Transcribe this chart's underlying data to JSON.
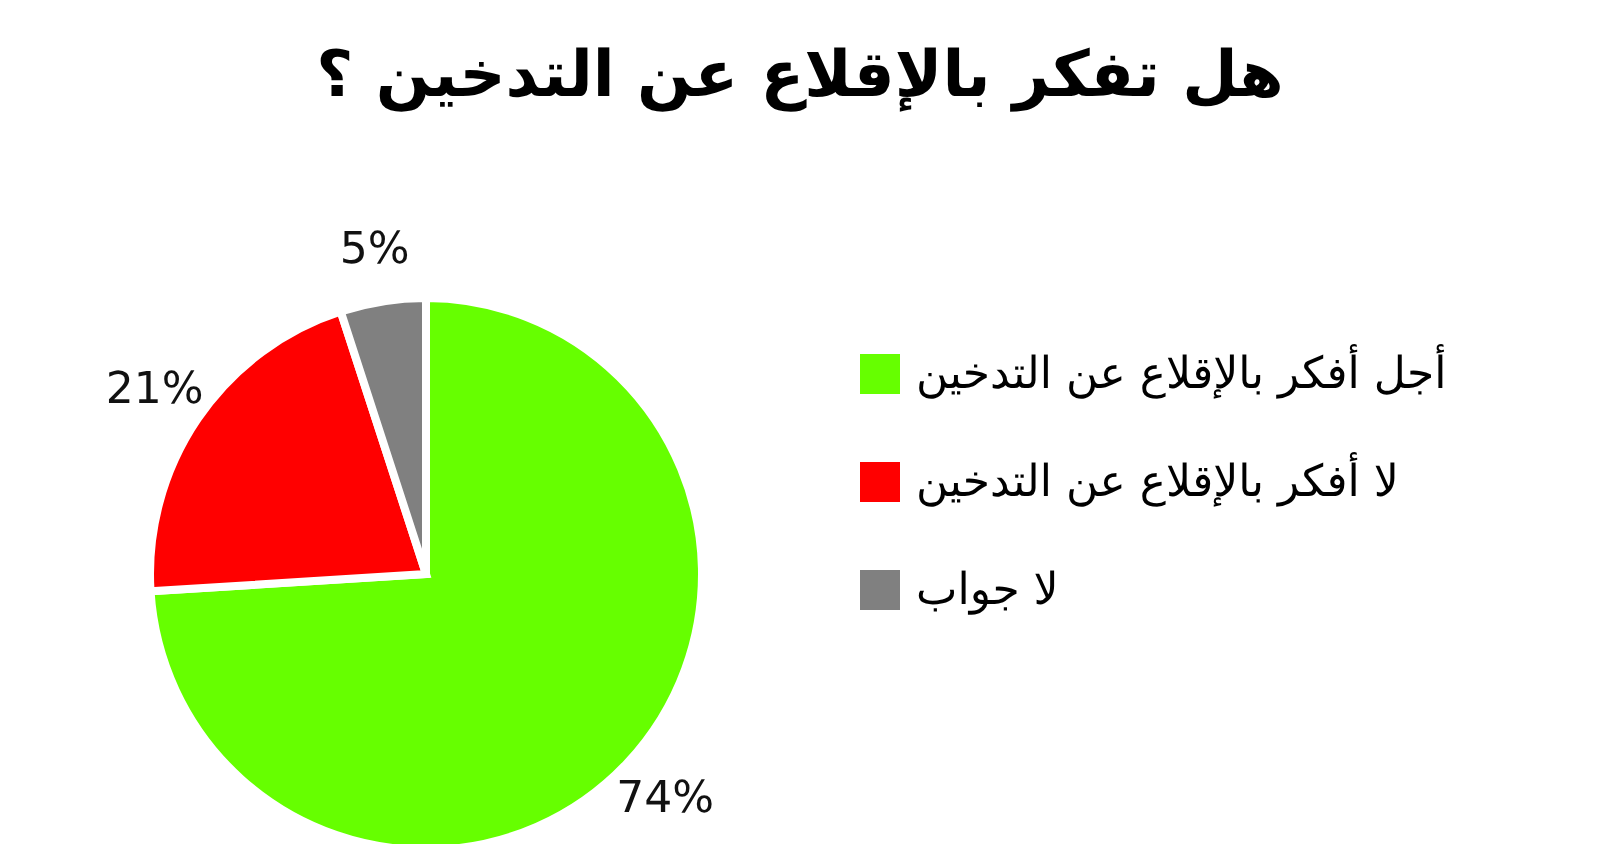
{
  "chart_data": {
    "type": "pie",
    "title": "هل تفكر بالإقلاع عن التدخين ؟",
    "categories": [
      "أجل أفكر بالإقلاع عن التدخين",
      "لا أفكر بالإقلاع عن التدخين",
      "لا جواب"
    ],
    "values": [
      74,
      21,
      5
    ],
    "colors": [
      "#66ff00",
      "#ff0000",
      "#808080"
    ],
    "value_labels": [
      "74%",
      "21%",
      "5%"
    ],
    "legend": "right"
  }
}
